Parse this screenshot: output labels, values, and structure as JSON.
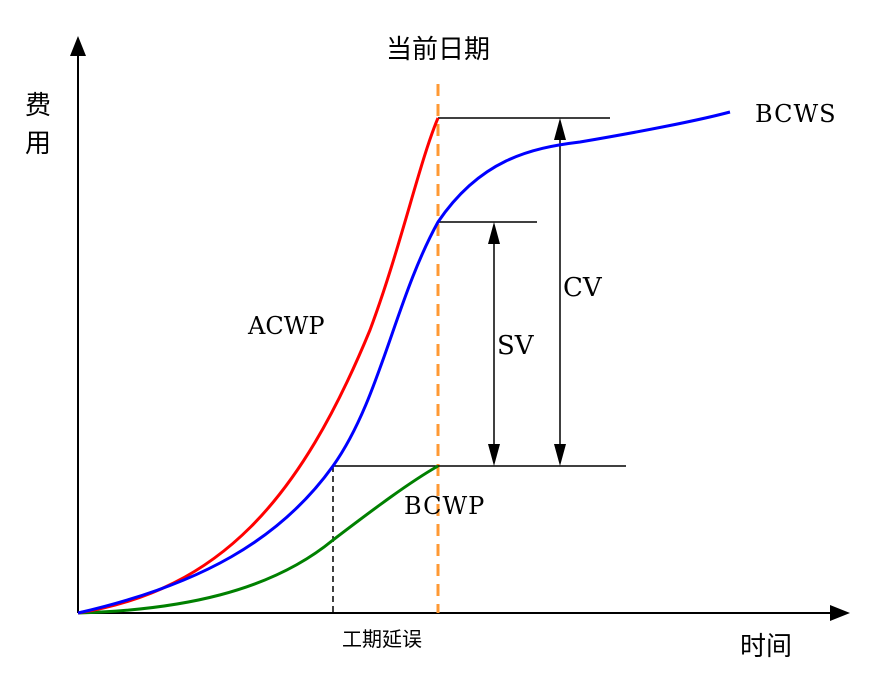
{
  "labels": {
    "current_date": "当前日期",
    "y_axis_char1": "费",
    "y_axis_char2": "用",
    "x_axis": "时间",
    "schedule_delay": "工期延误",
    "bcws": "BCWS",
    "acwp": "ACWP",
    "bcwp": "BCWP",
    "sv": "SV",
    "cv": "CV"
  },
  "colors": {
    "acwp": "#ff0000",
    "bcws": "#0000ff",
    "bcwp": "#008000",
    "current_date_line": "#ff9933",
    "axis": "#000000"
  }
}
